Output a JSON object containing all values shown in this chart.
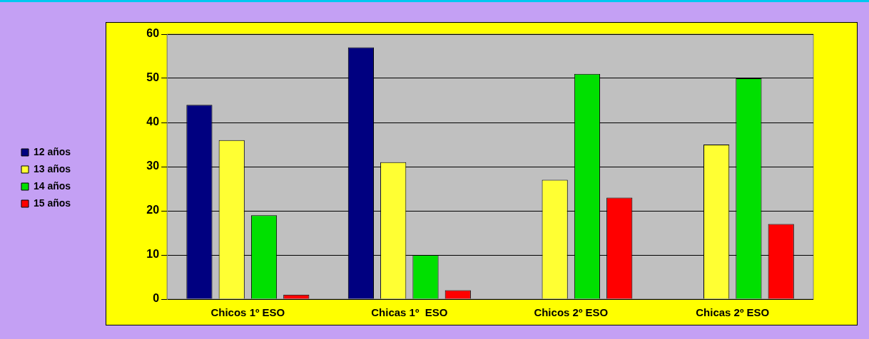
{
  "chart_data": {
    "type": "bar",
    "categories": [
      "Chicos 1º ESO",
      "Chicas 1º  ESO",
      "Chicos 2º ESO",
      "Chicas 2º ESO"
    ],
    "series": [
      {
        "name": "12 años",
        "color": "#000080",
        "values": [
          44,
          57,
          0,
          0
        ]
      },
      {
        "name": "13 años",
        "color": "#ffff33",
        "values": [
          36,
          31,
          27,
          35
        ]
      },
      {
        "name": "14 años",
        "color": "#00e000",
        "values": [
          19,
          10,
          51,
          50
        ]
      },
      {
        "name": "15 años",
        "color": "#ff0000",
        "values": [
          1,
          2,
          23,
          17
        ]
      }
    ],
    "ylim": [
      0,
      60
    ],
    "yticks": [
      0,
      10,
      20,
      30,
      40,
      50,
      60
    ],
    "grid": "y",
    "legend": "left"
  }
}
